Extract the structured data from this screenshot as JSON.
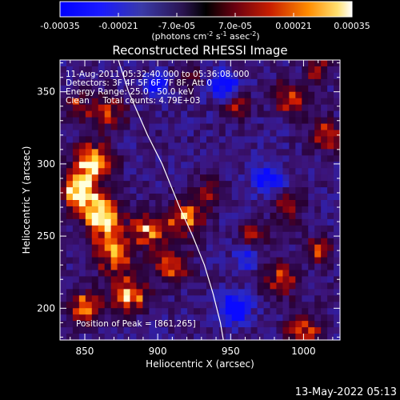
{
  "chart_data": {
    "type": "heatmap",
    "title": "Reconstructed RHESSI Image",
    "xlabel": "Heliocentric X (arcsec)",
    "ylabel": "Heliocentric Y (arcsec)",
    "xlim": [
      833,
      1025
    ],
    "ylim": [
      178,
      372
    ],
    "xticks": [
      850,
      900,
      950,
      1000
    ],
    "yticks": [
      200,
      250,
      300,
      350
    ],
    "colorbar": {
      "ticks": [
        "-0.00035",
        "-0.00021",
        "-7.0e-05",
        "7.0e-05",
        "0.00021",
        "0.00035"
      ],
      "range": [
        -0.00035,
        0.00035
      ],
      "label_main": "(photons cm",
      "label_exp1": "-2",
      "label_mid": " s",
      "label_exp2": "-1",
      "label_unit": " asec",
      "label_exp3": "-2",
      "label_end": ")"
    },
    "annotations": [
      "11-Aug-2011 05:32:40.000 to 05:36:08.000",
      "Detectors: 3F 4F 5F 6F 7F 8F, Att 0",
      "Energy Range: 25.0 - 50.0 keV",
      "Clean     Total counts: 4.79E+03"
    ],
    "peak_label": "Position of Peak = [861,265]",
    "peak": [
      861,
      265
    ],
    "limb_curve": [
      [
        873,
        372
      ],
      [
        880,
        350
      ],
      [
        893,
        320
      ],
      [
        903,
        300
      ],
      [
        915,
        270
      ],
      [
        924,
        250
      ],
      [
        932,
        230
      ],
      [
        938,
        210
      ],
      [
        943,
        190
      ],
      [
        945,
        178
      ]
    ],
    "bright_regions": [
      {
        "x": 861,
        "y": 265,
        "strength": 1.0,
        "spread": 9
      },
      {
        "x": 855,
        "y": 300,
        "strength": 0.95,
        "spread": 9
      },
      {
        "x": 845,
        "y": 280,
        "strength": 0.8,
        "spread": 8
      },
      {
        "x": 870,
        "y": 240,
        "strength": 0.7,
        "spread": 10
      },
      {
        "x": 895,
        "y": 255,
        "strength": 0.75,
        "spread": 8
      },
      {
        "x": 920,
        "y": 262,
        "strength": 0.7,
        "spread": 8
      },
      {
        "x": 880,
        "y": 210,
        "strength": 0.7,
        "spread": 9
      },
      {
        "x": 850,
        "y": 200,
        "strength": 0.65,
        "spread": 8
      },
      {
        "x": 910,
        "y": 230,
        "strength": 0.6,
        "spread": 8
      },
      {
        "x": 935,
        "y": 280,
        "strength": 0.45,
        "spread": 7
      },
      {
        "x": 965,
        "y": 250,
        "strength": 0.45,
        "spread": 7
      },
      {
        "x": 990,
        "y": 270,
        "strength": 0.5,
        "spread": 7
      },
      {
        "x": 985,
        "y": 220,
        "strength": 0.55,
        "spread": 8
      },
      {
        "x": 1010,
        "y": 240,
        "strength": 0.5,
        "spread": 7
      },
      {
        "x": 1000,
        "y": 185,
        "strength": 0.6,
        "spread": 8
      },
      {
        "x": 1015,
        "y": 320,
        "strength": 0.55,
        "spread": 8
      },
      {
        "x": 990,
        "y": 345,
        "strength": 0.5,
        "spread": 8
      },
      {
        "x": 1010,
        "y": 365,
        "strength": 0.45,
        "spread": 6
      },
      {
        "x": 955,
        "y": 340,
        "strength": 0.4,
        "spread": 7
      },
      {
        "x": 920,
        "y": 360,
        "strength": 0.35,
        "spread": 6
      },
      {
        "x": 865,
        "y": 335,
        "strength": 0.6,
        "spread": 8
      },
      {
        "x": 845,
        "y": 340,
        "strength": 0.45,
        "spread": 6
      }
    ],
    "dark_regions": [
      {
        "x": 953,
        "y": 200,
        "strength": 0.9,
        "spread": 7
      },
      {
        "x": 945,
        "y": 355,
        "strength": 0.7,
        "spread": 7
      },
      {
        "x": 975,
        "y": 290,
        "strength": 0.6,
        "spread": 8
      },
      {
        "x": 900,
        "y": 355,
        "strength": 0.5,
        "spread": 6
      },
      {
        "x": 960,
        "y": 235,
        "strength": 0.45,
        "spread": 6
      }
    ]
  },
  "footer": {
    "date": "13-May-2022 05:13"
  }
}
